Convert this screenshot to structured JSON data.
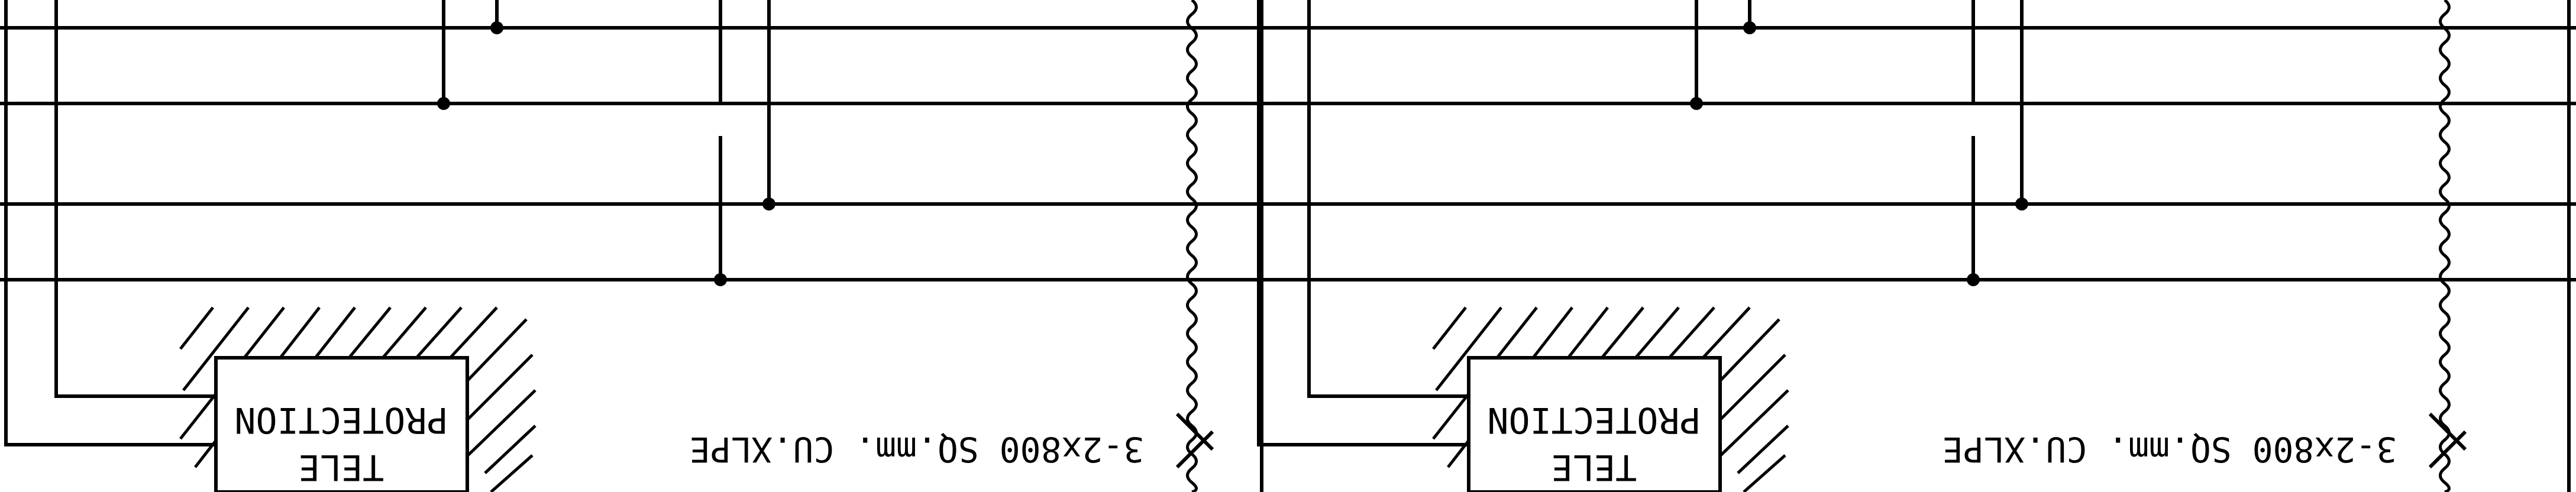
{
  "drawing": {
    "stroke_color": "#000000",
    "background": "#ffffff",
    "orientation": "rotated 180 degrees (upside-down)"
  },
  "panels": [
    {
      "id": "left",
      "cable_label": "3-2x800 SQ.mm. CU.XLPE",
      "box_label_line1": "TELE",
      "box_label_line2": "PROTECTION",
      "hatch": "diagonal"
    },
    {
      "id": "right",
      "cable_label": "3-2x800 SQ.mm. CU.XLPE",
      "box_label_line1": "TELE",
      "box_label_line2": "PROTECTION",
      "hatch": "diagonal"
    }
  ],
  "icons": [
    "wavy-break-line-icon",
    "junction-dot-icon",
    "cable-tick-icon"
  ]
}
